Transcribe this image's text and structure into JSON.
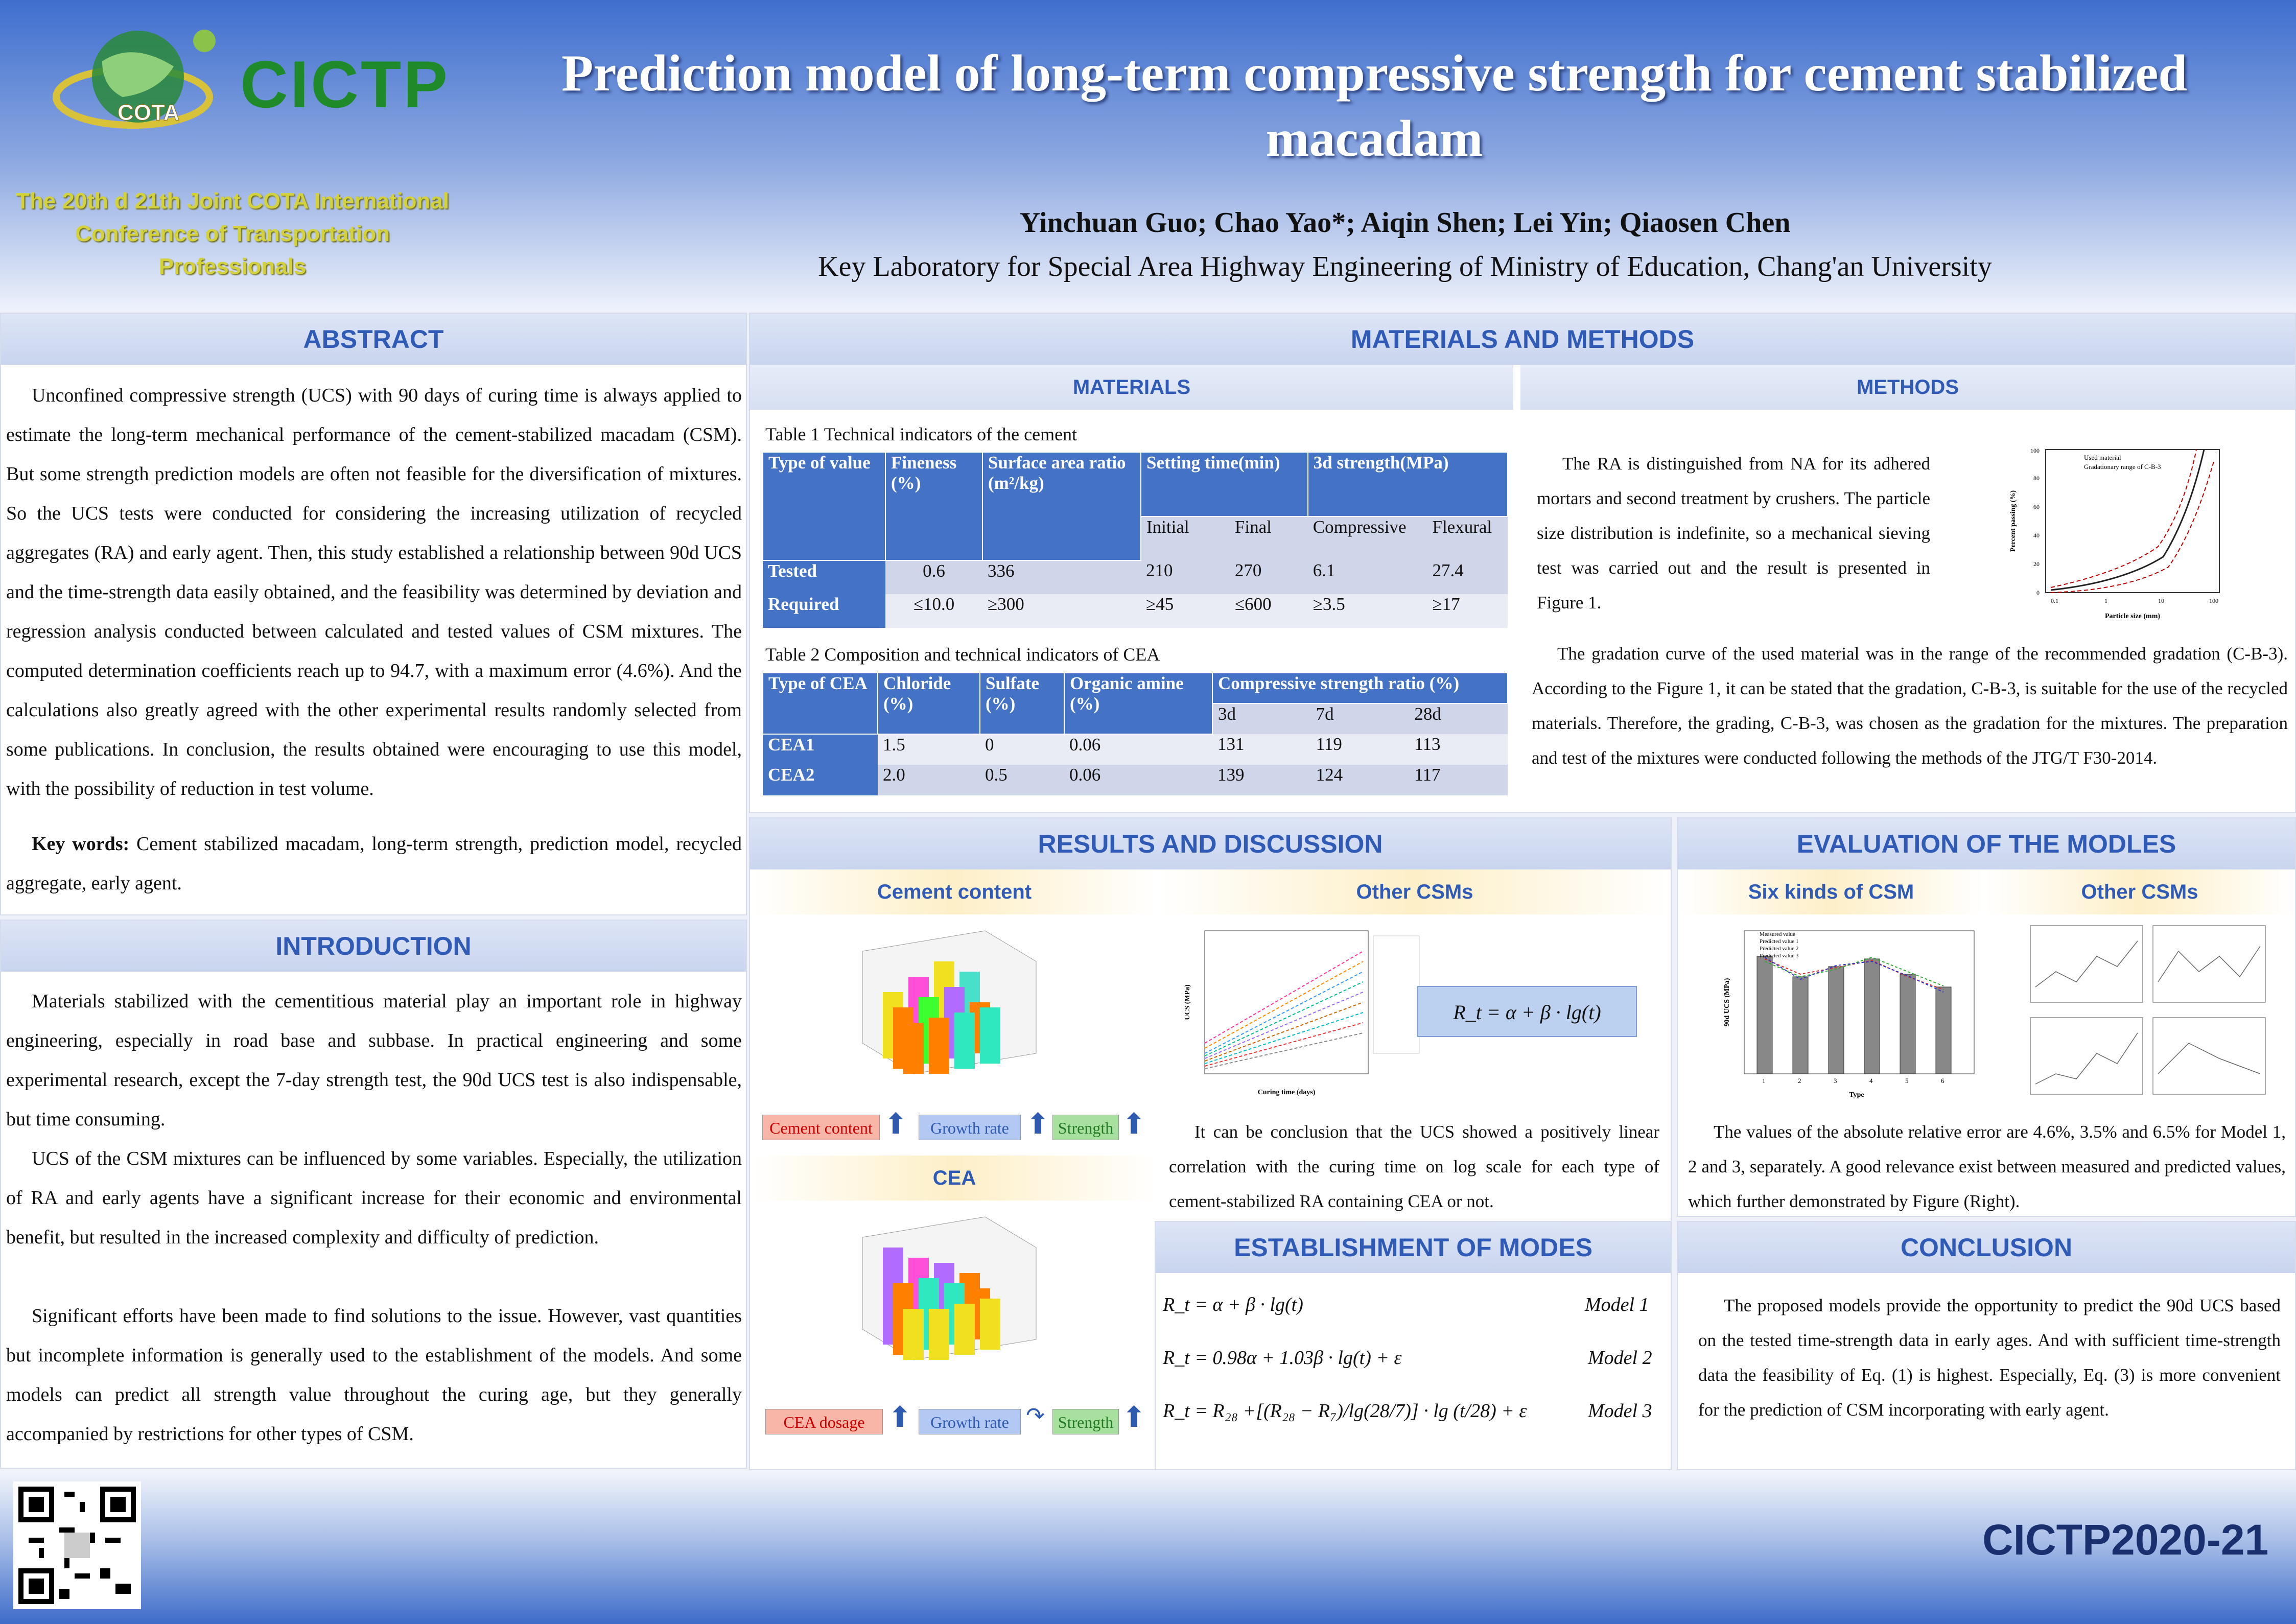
{
  "header": {
    "title": "Prediction model of long-term compressive strength for cement stabilized macadam",
    "authors": "Yinchuan Guo; Chao Yao*; Aiqin Shen; Lei Yin; Qiaosen Chen",
    "affiliation": "Key Laboratory for Special Area Highway Engineering of Ministry of Education, Chang'an University",
    "conference": "The 20th d 21th Joint COTA International Conference of Transportation Professionals",
    "logo_text": "CICTP",
    "cota_text": "COTA"
  },
  "abstract": {
    "heading": "ABSTRACT",
    "text": "Unconfined compressive strength (UCS) with 90 days of curing time is always applied to estimate the long-term mechanical performance of the cement-stabilized macadam (CSM). But some strength prediction models are often not feasible for the diversification of mixtures. So the UCS tests were conducted for considering the increasing utilization of recycled aggregates (RA) and early agent. Then, this study established a relationship between 90d UCS and the time-strength data easily obtained, and the feasibility was determined by deviation and regression analysis conducted between calculated and tested values of CSM mixtures. The computed determination coefficients reach up to 94.7, with a maximum error (4.6%). And the calculations also greatly agreed with the other experimental results randomly selected from some publications. In conclusion, the results obtained were encouraging to use this model, with the possibility of reduction in test volume.",
    "keywords_label": "Key words:",
    "keywords": " Cement stabilized macadam, long-term strength, prediction model, recycled aggregate, early agent."
  },
  "introduction": {
    "heading": "INTRODUCTION",
    "p1": "Materials stabilized with the cementitious material play an important role in highway engineering, especially in road base and subbase. In practical engineering and some experimental research, except the 7-day strength test, the 90d UCS test is also indispensable, but time consuming.",
    "p2": "UCS of the CSM mixtures can be influenced by some variables. Especially, the utilization of RA and early agents have a significant increase for their economic and environmental benefit, but resulted in the increased complexity and difficulty of prediction.",
    "p3": "Significant efforts have been made to find solutions to the issue. However, vast quantities but incomplete information is generally used to the establishment of the models. And some models can predict all strength value throughout the curing age, but they generally accompanied by restrictions for other types of CSM."
  },
  "materials_methods": {
    "heading": "MATERIALS AND METHODS",
    "materials_heading": "MATERIALS",
    "methods_heading": "METHODS",
    "table1_caption": "Table 1 Technical indicators of the cement",
    "table1": {
      "h_type": "Type of value",
      "h_fineness": "Fineness (%)",
      "h_surface": "Surface area ratio (m²/kg)",
      "h_setting": "Setting time(min)",
      "h_strength": "3d strength(MPa)",
      "s_initial": "Initial",
      "s_final": "Final",
      "s_comp": "Compressive",
      "s_flex": "Flexural",
      "rows": [
        [
          "Tested",
          "0.6",
          "336",
          "210",
          "270",
          "6.1",
          "27.4"
        ],
        [
          "Required",
          "≤10.0",
          "≥300",
          "≥45",
          "≤600",
          "≥3.5",
          "≥17"
        ]
      ]
    },
    "table2_caption": "Table 2  Composition and technical indicators of CEA",
    "table2": {
      "h_type": "Type of CEA",
      "h_chloride": "Chloride (%)",
      "h_sulfate": "Sulfate (%)",
      "h_amine": "Organic amine (%)",
      "h_ratio": "Compressive strength ratio (%)",
      "s_3d": "3d",
      "s_7d": "7d",
      "s_28d": "28d",
      "rows": [
        [
          "CEA1",
          "1.5",
          "0",
          "0.06",
          "131",
          "119",
          "113"
        ],
        [
          "CEA2",
          "2.0",
          "0.5",
          "0.06",
          "139",
          "124",
          "117"
        ]
      ]
    },
    "methods_p1": "The RA is distinguished from NA for its adhered mortars and second treatment by crushers. The particle size distribution is indefinite, so a mechanical sieving test was carried out and the result is presented in Figure 1.",
    "methods_p2": "The gradation curve of the used material was in the range of the recommended gradation (C-B-3). According to the Figure 1, it can be stated that the gradation, C-B-3, is suitable for the use of the recycled materials. Therefore, the grading, C-B-3, was chosen as the gradation for the mixtures. The preparation and test of the mixtures were conducted following the methods of the JTG/T F30-2014.",
    "fig1": {
      "xlabel": "Particle size (mm)",
      "ylabel": "Percent passing (%)",
      "legend1": "Used material",
      "legend2": "Gradationary range of C-B-3",
      "ticks_x": [
        "0.1",
        "1",
        "10",
        "100"
      ],
      "ticks_y": [
        "0",
        "20",
        "40",
        "60",
        "80",
        "100"
      ]
    }
  },
  "results": {
    "heading": "RESULTS AND DISCUSSION",
    "cement_heading": "Cement content",
    "cea_heading": "CEA",
    "other_heading": "Other CSMs",
    "tags1": [
      "Cement content",
      "Growth rate",
      "Strength"
    ],
    "tags2": [
      "CEA dosage",
      "Growth rate",
      "Strength"
    ],
    "equation": "R_t = α + β · lg(t)",
    "text": "It can be conclusion that the UCS showed a positively linear correlation with the curing time on log scale for each type of cement-stabilized RA containing CEA or not.",
    "line_chart": {
      "xlabel": "Curing time (days)",
      "ylabel": "UCS (MPa)"
    }
  },
  "establishment": {
    "heading": "ESTABLISHMENT OF MODES",
    "m1": "R_t = α + β · lg(t)",
    "l1": "Model 1",
    "m2": "R_t = 0.98α + 1.03β · lg(t) + ε",
    "l2": "Model 2",
    "m3": "R_t = R₂₈ +[(R₂₈ − R₇)/lg(28/7)] · lg (t/28) + ε",
    "l3": "Model 3"
  },
  "evaluation": {
    "heading": "EVALUATION OF THE MODLES",
    "six_heading": "Six kinds of CSM",
    "other_heading": "Other CSMs",
    "text": "The values of the absolute relative error are 4.6%, 3.5% and 6.5% for Model 1, 2 and 3, separately. A good relevance exist between measured and predicted values, which further demonstrated by Figure (Right).",
    "bar_chart": {
      "xlabel": "Type",
      "ylabel": "90d UCS (MPa)",
      "legend": [
        "Measured value",
        "Predicted value 1",
        "Predicted value 2",
        "Predicted value 3"
      ],
      "categories": [
        "1",
        "2",
        "3",
        "4",
        "5",
        "6"
      ]
    }
  },
  "conclusion": {
    "heading": "CONCLUSION",
    "text": "The proposed models provide the opportunity to predict the 90d UCS based on the tested time-strength data in early ages. And with sufficient time-strength data the feasibility of Eq. (1) is highest. Especially, Eq. (3) is more convenient for the prediction of CSM incorporating with early agent."
  },
  "footer": {
    "logo": "CICTP2020-21"
  },
  "colors": {
    "accent": "#2f5bb7",
    "table_header": "#4472c4",
    "title_shadow": "#2a3f7a"
  }
}
